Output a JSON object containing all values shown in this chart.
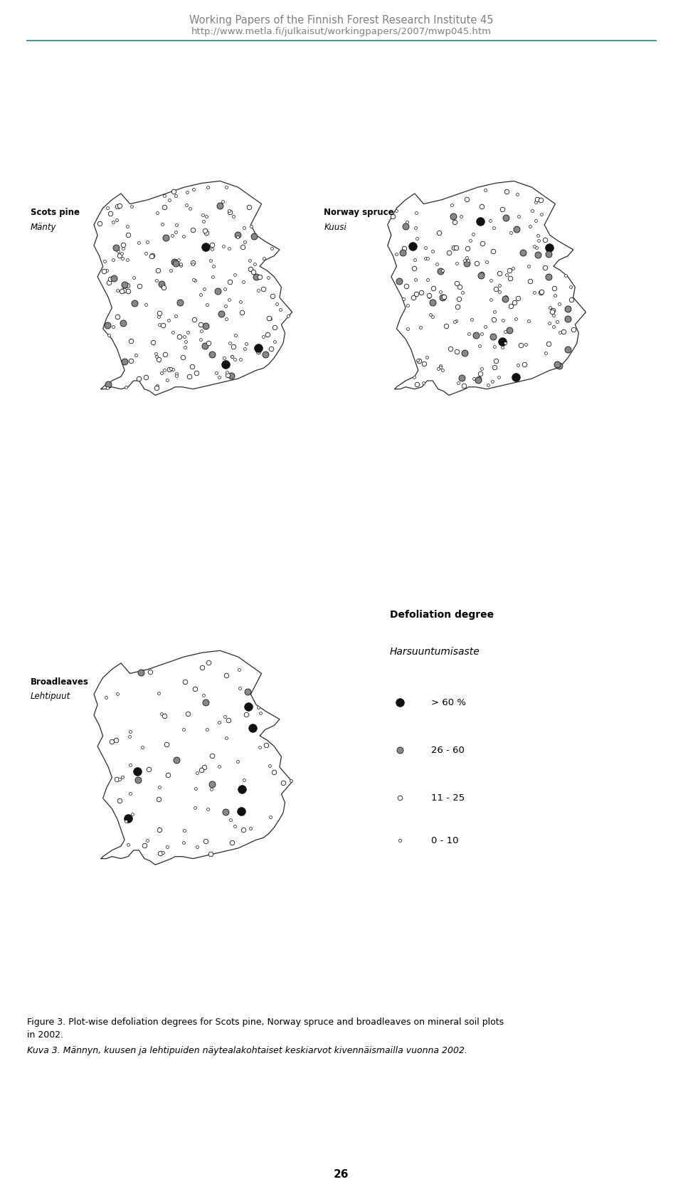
{
  "header_line1": "Working Papers of the Finnish Forest Research Institute 45",
  "header_line2": "http://www.metla.fi/julkaisut/workingpapers/2007/mwp045.htm",
  "header_color": "#808080",
  "separator_color": "#4a9a9a",
  "bg_color": "#ffffff",
  "map1_label_line1": "Scots pine",
  "map1_label_line2": "Mänty",
  "map2_label_line1": "Norway spruce",
  "map2_label_line2": "Kuusi",
  "map3_label_line1": "Broadleaves",
  "map3_label_line2": "Lehtipuut",
  "legend_title_line1": "Defoliation degree",
  "legend_title_line2": "Harsuuntumisaste",
  "legend_items": [
    "> 60 %",
    "26 - 60",
    "11 - 25",
    "0 - 10"
  ],
  "caption_line1": "Figure 3. Plot-wise defoliation degrees for Scots pine, Norway spruce and broadleaves on mineral soil plots",
  "caption_line2": "in 2002.",
  "caption_line3": "Kuva 3. Männyn, kuusen ja lehtipuiden näytealakohtaiset keskiarvot kivennäismailla vuonna 2002.",
  "page_number": "26"
}
